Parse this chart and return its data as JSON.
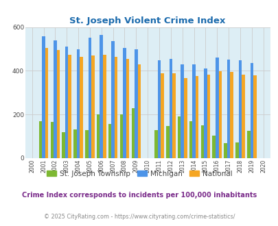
{
  "title": "St. Joseph Violent Crime Index",
  "years": [
    2000,
    2001,
    2002,
    2003,
    2004,
    2005,
    2006,
    2007,
    2008,
    2009,
    2010,
    2011,
    2012,
    2013,
    2014,
    2015,
    2016,
    2017,
    2018,
    2019,
    2020
  ],
  "township": [
    0,
    170,
    165,
    120,
    132,
    130,
    200,
    157,
    200,
    230,
    0,
    130,
    148,
    192,
    170,
    150,
    103,
    70,
    72,
    125,
    0
  ],
  "michigan": [
    0,
    557,
    540,
    510,
    497,
    553,
    565,
    537,
    505,
    500,
    0,
    447,
    455,
    430,
    428,
    412,
    460,
    450,
    448,
    435,
    0
  ],
  "national": [
    0,
    505,
    494,
    472,
    463,
    470,
    472,
    465,
    455,
    430,
    0,
    390,
    390,
    368,
    375,
    383,
    399,
    395,
    382,
    379,
    0
  ],
  "township_color": "#7db832",
  "michigan_color": "#4d94e8",
  "national_color": "#f5a623",
  "bg_color": "#ddeef5",
  "title_color": "#1c6bad",
  "subtitle_text": "Crime Index corresponds to incidents per 100,000 inhabitants",
  "subtitle_color": "#7b2d8b",
  "copyright_text": "© 2025 CityRating.com - https://www.cityrating.com/crime-statistics/",
  "copyright_color": "#888888",
  "legend_labels": [
    "St. Joseph Township",
    "Michigan",
    "National"
  ],
  "ylim": [
    0,
    600
  ],
  "yticks": [
    0,
    200,
    400,
    600
  ],
  "bar_width": 0.27,
  "grid_color": "#cccccc"
}
